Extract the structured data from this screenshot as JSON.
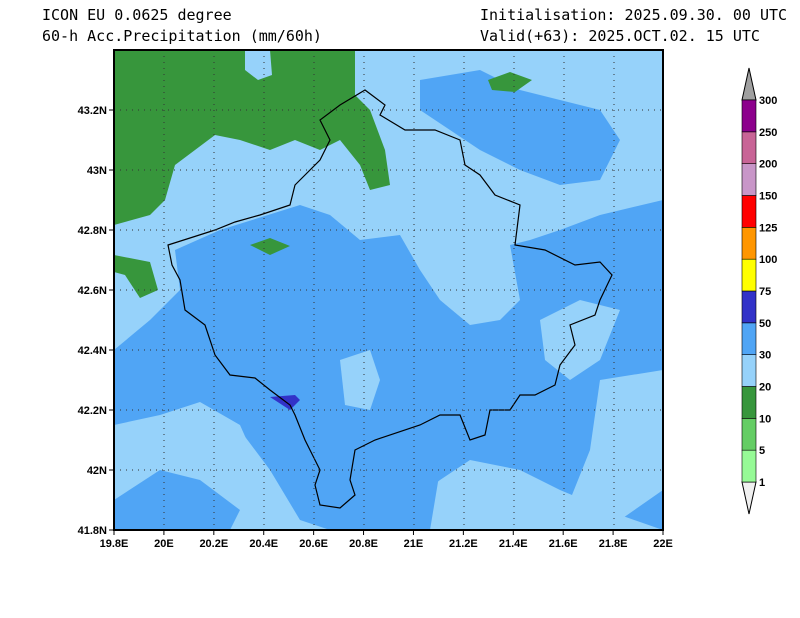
{
  "header": {
    "model": "ICON EU 0.0625 degree",
    "variable": "60-h Acc.Precipitation (mm/60h)",
    "init": "Initialisation: 2025.09.30. 00 UTC",
    "valid": "Valid(+63): 2025.OCT.02. 15 UTC"
  },
  "axes": {
    "lon_ticks": [
      "19.8E",
      "20E",
      "20.2E",
      "20.4E",
      "20.6E",
      "20.8E",
      "21E",
      "21.2E",
      "21.4E",
      "21.6E",
      "21.8E",
      "22E"
    ],
    "lat_ticks": [
      "41.8N",
      "42N",
      "42.2N",
      "42.4N",
      "42.6N",
      "42.8N",
      "43N",
      "43.2N"
    ],
    "lon_range": [
      19.8,
      22.0
    ],
    "lat_range": [
      41.8,
      43.4
    ]
  },
  "colorbar": {
    "levels": [
      "1",
      "5",
      "10",
      "20",
      "30",
      "50",
      "75",
      "100",
      "125",
      "150",
      "200",
      "250",
      "300"
    ],
    "colors": [
      "#96fa96",
      "#64cd64",
      "#37963c",
      "#96d2fa",
      "#50a5f5",
      "#3232c8",
      "#ffff00",
      "#ff9600",
      "#ff0000",
      "#c896c8",
      "#c86496",
      "#8c008c"
    ],
    "under_color": "#f0f0f0",
    "over_color": "#a0a0a0"
  }
}
